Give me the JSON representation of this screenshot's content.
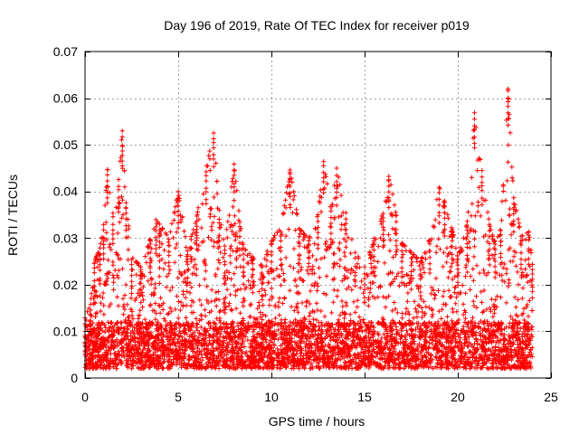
{
  "colors": {
    "marker": "#ff0000",
    "frame": "#000000",
    "grid": "#a0a0a0",
    "background": "#ffffff"
  },
  "chart_data": {
    "type": "scatter",
    "title": "Day 196 of 2019, Rate Of TEC Index for receiver p019",
    "xlabel": "GPS time / hours",
    "ylabel": "ROTI / TECUs",
    "xlim": [
      0,
      25
    ],
    "ylim": [
      0,
      0.07
    ],
    "x_ticks": [
      0,
      5,
      10,
      15,
      20,
      25
    ],
    "x_tick_labels": [
      "0",
      "5",
      "10",
      "15",
      "20",
      "25"
    ],
    "y_ticks": [
      0,
      0.01,
      0.02,
      0.03,
      0.04,
      0.05,
      0.06,
      0.07
    ],
    "y_tick_labels": [
      "0",
      "0.01",
      "0.02",
      "0.03",
      "0.04",
      "0.05",
      "0.06",
      "0.07"
    ],
    "grid": true,
    "marker": "+",
    "x_data_range": [
      0,
      24
    ],
    "baseline_roti": [
      0.002,
      0.012
    ],
    "series": [
      {
        "name": "ROTI",
        "envelope": [
          [
            0.0,
            0.013
          ],
          [
            0.3,
            0.016
          ],
          [
            0.5,
            0.025
          ],
          [
            0.8,
            0.028
          ],
          [
            1.0,
            0.033
          ],
          [
            1.2,
            0.045
          ],
          [
            1.5,
            0.036
          ],
          [
            1.8,
            0.043
          ],
          [
            2.0,
            0.053
          ],
          [
            2.2,
            0.038
          ],
          [
            2.5,
            0.026
          ],
          [
            3.0,
            0.024
          ],
          [
            3.5,
            0.03
          ],
          [
            3.8,
            0.034
          ],
          [
            4.0,
            0.033
          ],
          [
            4.5,
            0.03
          ],
          [
            5.0,
            0.04
          ],
          [
            5.5,
            0.028
          ],
          [
            6.0,
            0.035
          ],
          [
            6.5,
            0.045
          ],
          [
            6.9,
            0.053
          ],
          [
            7.2,
            0.036
          ],
          [
            7.5,
            0.028
          ],
          [
            8.0,
            0.046
          ],
          [
            8.3,
            0.034
          ],
          [
            8.5,
            0.028
          ],
          [
            9.0,
            0.026
          ],
          [
            9.5,
            0.024
          ],
          [
            10.0,
            0.03
          ],
          [
            10.5,
            0.032
          ],
          [
            11.0,
            0.045
          ],
          [
            11.5,
            0.032
          ],
          [
            12.0,
            0.03
          ],
          [
            12.5,
            0.035
          ],
          [
            12.8,
            0.047
          ],
          [
            13.2,
            0.036
          ],
          [
            13.5,
            0.045
          ],
          [
            14.0,
            0.036
          ],
          [
            14.5,
            0.027
          ],
          [
            15.0,
            0.024
          ],
          [
            15.5,
            0.03
          ],
          [
            16.0,
            0.036
          ],
          [
            16.3,
            0.044
          ],
          [
            16.7,
            0.035
          ],
          [
            17.0,
            0.029
          ],
          [
            17.5,
            0.027
          ],
          [
            18.0,
            0.025
          ],
          [
            18.5,
            0.03
          ],
          [
            19.0,
            0.041
          ],
          [
            19.3,
            0.038
          ],
          [
            19.7,
            0.032
          ],
          [
            20.0,
            0.026
          ],
          [
            20.5,
            0.033
          ],
          [
            20.9,
            0.057
          ],
          [
            21.3,
            0.045
          ],
          [
            21.7,
            0.033
          ],
          [
            22.0,
            0.029
          ],
          [
            22.3,
            0.032
          ],
          [
            22.7,
            0.062
          ],
          [
            23.0,
            0.039
          ],
          [
            23.4,
            0.031
          ],
          [
            23.8,
            0.032
          ],
          [
            24.0,
            0.025
          ]
        ]
      }
    ]
  }
}
